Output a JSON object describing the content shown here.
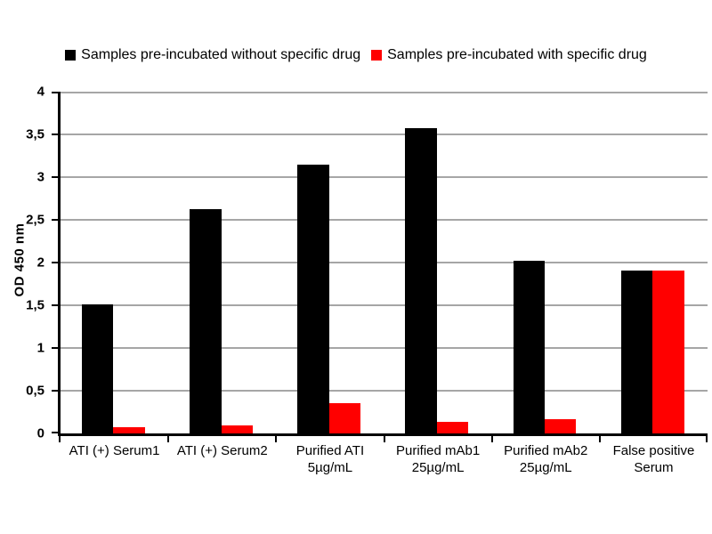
{
  "chart_data": {
    "type": "bar",
    "title": "",
    "xlabel": "",
    "ylabel": "OD 450 nm",
    "ylim": [
      0,
      4
    ],
    "grid": "horizontal",
    "legend_position": "top",
    "decimal_separator": ",",
    "ytick_values": [
      0,
      0.5,
      1,
      1.5,
      2,
      2.5,
      3,
      3.5,
      4
    ],
    "ytick_labels": [
      "0",
      "0,5",
      "1",
      "1,5",
      "2",
      "2,5",
      "3",
      "3,5",
      "4"
    ],
    "categories": [
      "ATI (+) Serum1",
      "ATI (+) Serum2",
      "Purified ATI\n5µg/mL",
      "Purified mAb1\n25µg/mL",
      "Purified mAb2\n25µg/mL",
      "False positive\nSerum"
    ],
    "series": [
      {
        "name": "Samples pre-incubated without specific drug",
        "color": "#000000",
        "values": [
          1.51,
          2.63,
          3.15,
          3.57,
          2.02,
          1.91
        ]
      },
      {
        "name": "Samples pre-incubated with specific drug",
        "color": "#ff0000",
        "values": [
          0.07,
          0.09,
          0.35,
          0.14,
          0.17,
          1.91
        ]
      }
    ],
    "colors": {
      "gridline": "#a6a6a6",
      "axis": "#000000",
      "background": "#ffffff"
    }
  }
}
